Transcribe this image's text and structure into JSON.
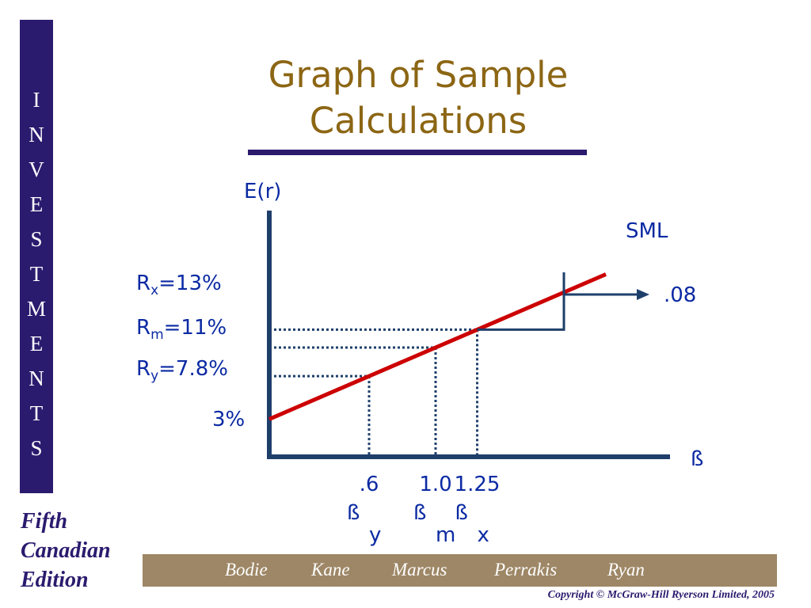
{
  "sidebar": {
    "letters": [
      "I",
      "N",
      "V",
      "E",
      "S",
      "T",
      "M",
      "E",
      "N",
      "T",
      "S"
    ]
  },
  "edition": {
    "lines": [
      "Fifth",
      "Canadian",
      "Edition"
    ]
  },
  "title": {
    "lines": [
      "Graph of Sample",
      "Calculations"
    ]
  },
  "colors": {
    "navy": "#2b1b6e",
    "gold": "#8c6614",
    "sml_red": "#cc0000",
    "axis": "#1f3f6b",
    "label_blue": "#0b2aa3",
    "footer_tan": "#9e8766"
  },
  "footer": {
    "authors": [
      "Bodie",
      "Kane",
      "Marcus",
      "Perrakis",
      "Ryan"
    ],
    "copyright": "Copyright © McGraw-Hill Ryerson Limited, 2005"
  },
  "chart_data": {
    "type": "line",
    "xlabel": "ß",
    "ylabel": "E(r)",
    "series": [
      {
        "name": "SML",
        "x": [
          0,
          1.0,
          1.25,
          2.0
        ],
        "y": [
          3,
          11,
          13,
          19
        ]
      }
    ],
    "points": [
      {
        "beta_tick": ".6",
        "beta_label": "ß",
        "beta_sub": "y",
        "beta": 0.6,
        "ret_label": "R",
        "ret_sub": "y",
        "ret_value": "=7.8%",
        "ret": 7.8
      },
      {
        "beta_tick": "1.0",
        "beta_label": "ß",
        "beta_sub": "m",
        "beta": 1.0,
        "ret_label": "R",
        "ret_sub": "m",
        "ret_value": "=11%",
        "ret": 11
      },
      {
        "beta_tick": "1.25",
        "beta_label": "ß",
        "beta_sub": "x",
        "beta": 1.25,
        "ret_label": "R",
        "ret_sub": "x",
        "ret_value": "=13%",
        "ret": 13
      }
    ],
    "intercept_label": "3%",
    "intercept": 3,
    "alpha_label": ".08",
    "alpha": 0.08
  }
}
